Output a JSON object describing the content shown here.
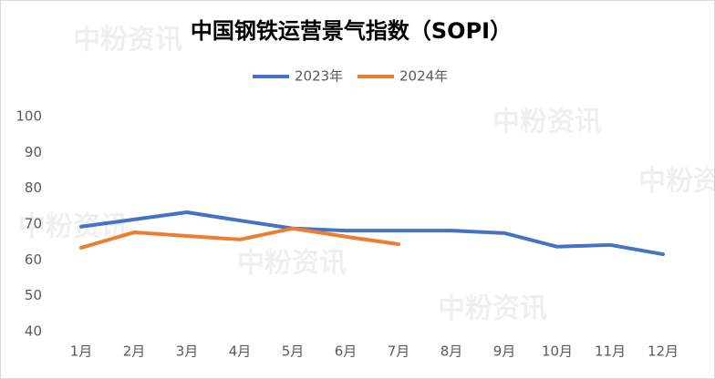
{
  "chart_data": {
    "type": "line",
    "title": "中国钢铁运营景气指数（SOPI）",
    "watermark": "中粉资讯",
    "categories": [
      "1月",
      "2月",
      "3月",
      "4月",
      "5月",
      "6月",
      "7月",
      "8月",
      "9月",
      "10月",
      "11月",
      "12月"
    ],
    "series": [
      {
        "name": "2023年",
        "color": "#4472c4",
        "values": [
          69.3,
          71.3,
          73.3,
          71.0,
          68.8,
          68.2,
          68.2,
          68.2,
          67.5,
          63.7,
          64.2,
          61.6
        ]
      },
      {
        "name": "2024年",
        "color": "#ed7d31",
        "values": [
          63.4,
          67.7,
          66.7,
          65.7,
          68.8,
          66.5,
          64.4,
          null,
          null,
          null,
          null,
          null
        ]
      }
    ],
    "ylim": [
      40,
      100
    ],
    "yticks": [
      40,
      50,
      60,
      70,
      80,
      90,
      100
    ],
    "grid": false,
    "legend": "top"
  }
}
